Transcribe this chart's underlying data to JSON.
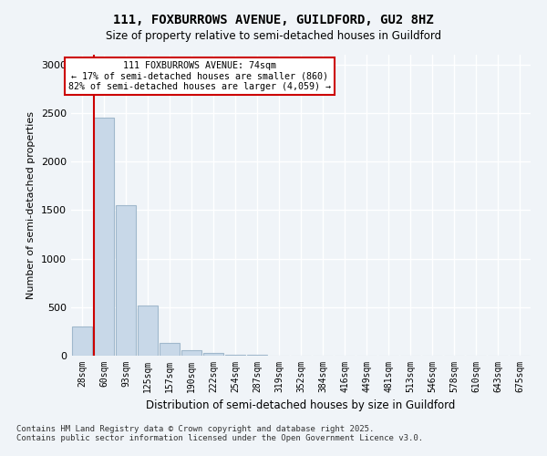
{
  "title_line1": "111, FOXBURROWS AVENUE, GUILDFORD, GU2 8HZ",
  "title_line2": "Size of property relative to semi-detached houses in Guildford",
  "xlabel": "Distribution of semi-detached houses by size in Guildford",
  "ylabel": "Number of semi-detached properties",
  "bin_labels": [
    "28sqm",
    "60sqm",
    "93sqm",
    "125sqm",
    "157sqm",
    "190sqm",
    "222sqm",
    "254sqm",
    "287sqm",
    "319sqm",
    "352sqm",
    "384sqm",
    "416sqm",
    "449sqm",
    "481sqm",
    "513sqm",
    "546sqm",
    "578sqm",
    "610sqm",
    "643sqm",
    "675sqm"
  ],
  "bar_values": [
    300,
    2450,
    1550,
    520,
    130,
    60,
    25,
    10,
    5,
    2,
    1,
    0,
    0,
    0,
    0,
    0,
    0,
    0,
    0,
    0,
    0
  ],
  "bar_color": "#c8d8e8",
  "bar_edgecolor": "#a0b8cc",
  "property_value": 74,
  "property_label": "111 FOXBURROWS AVENUE: 74sqm",
  "pct_smaller": 17,
  "pct_larger": 82,
  "num_smaller": 860,
  "num_larger": 4059,
  "annotation_box_color": "#ffffff",
  "annotation_box_edgecolor": "#cc0000",
  "vline_color": "#cc0000",
  "vline_x": 1,
  "ylim": [
    0,
    3100
  ],
  "yticks": [
    0,
    500,
    1000,
    1500,
    2000,
    2500,
    3000
  ],
  "background_color": "#f0f4f8",
  "grid_color": "#ffffff",
  "footnote": "Contains HM Land Registry data © Crown copyright and database right 2025.\nContains public sector information licensed under the Open Government Licence v3.0."
}
